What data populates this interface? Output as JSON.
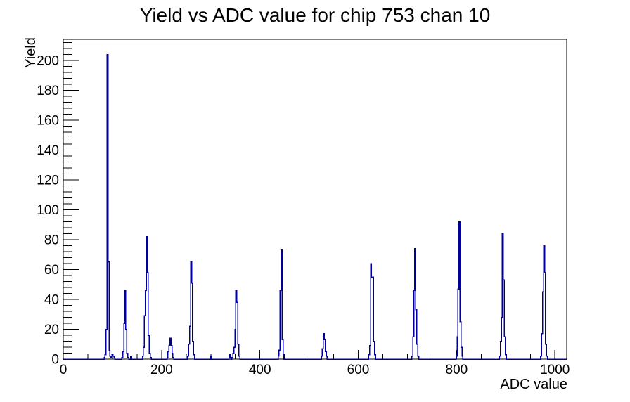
{
  "page": {
    "background": "#ffffff"
  },
  "chart_data": {
    "type": "histogram",
    "title": "Yield vs ADC value for chip 753 chan 10",
    "xlabel": "ADC value",
    "ylabel": "Yield",
    "xlim": [
      0,
      1024
    ],
    "ylim": [
      0,
      214.2
    ],
    "grid": false,
    "legend": false,
    "line_color": "#000099",
    "axis_color": "#000000",
    "x_tick_values": [
      0,
      200,
      400,
      600,
      800,
      1000
    ],
    "x_tick_labels": [
      "0",
      "200",
      "400",
      "600",
      "800",
      "1000"
    ],
    "x_minor_tick_step": 50,
    "x_major_tick_step": 200,
    "y_tick_values": [
      0,
      20,
      40,
      60,
      80,
      100,
      120,
      140,
      160,
      180,
      200
    ],
    "y_tick_labels": [
      "0",
      "20",
      "40",
      "60",
      "80",
      "100",
      "120",
      "140",
      "160",
      "180",
      "200"
    ],
    "y_minor_tick_step": 4,
    "y_major_tick_step": 20,
    "bin_width": 2,
    "bins": [
      [
        84,
        1
      ],
      [
        86,
        3
      ],
      [
        88,
        20
      ],
      [
        90,
        204
      ],
      [
        92,
        65
      ],
      [
        94,
        6
      ],
      [
        96,
        2
      ],
      [
        98,
        1
      ],
      [
        100,
        3
      ],
      [
        102,
        2
      ],
      [
        104,
        1
      ],
      [
        120,
        1
      ],
      [
        122,
        5
      ],
      [
        124,
        24
      ],
      [
        126,
        46
      ],
      [
        128,
        20
      ],
      [
        130,
        4
      ],
      [
        132,
        1
      ],
      [
        138,
        2
      ],
      [
        162,
        2
      ],
      [
        164,
        8
      ],
      [
        166,
        29
      ],
      [
        168,
        46
      ],
      [
        170,
        82
      ],
      [
        172,
        58
      ],
      [
        174,
        16
      ],
      [
        176,
        4
      ],
      [
        178,
        1
      ],
      [
        212,
        1
      ],
      [
        214,
        5
      ],
      [
        216,
        9
      ],
      [
        218,
        14
      ],
      [
        220,
        9
      ],
      [
        222,
        4
      ],
      [
        224,
        1
      ],
      [
        254,
        2
      ],
      [
        256,
        10
      ],
      [
        258,
        22
      ],
      [
        260,
        65
      ],
      [
        262,
        51
      ],
      [
        264,
        12
      ],
      [
        266,
        3
      ],
      [
        300,
        2
      ],
      [
        338,
        3
      ],
      [
        340,
        1
      ],
      [
        344,
        1
      ],
      [
        346,
        4
      ],
      [
        348,
        8
      ],
      [
        350,
        20
      ],
      [
        352,
        46
      ],
      [
        354,
        38
      ],
      [
        356,
        10
      ],
      [
        358,
        2
      ],
      [
        438,
        2
      ],
      [
        440,
        6
      ],
      [
        442,
        46
      ],
      [
        444,
        73
      ],
      [
        446,
        13
      ],
      [
        448,
        3
      ],
      [
        526,
        2
      ],
      [
        528,
        7
      ],
      [
        530,
        17
      ],
      [
        532,
        13
      ],
      [
        534,
        5
      ],
      [
        536,
        2
      ],
      [
        622,
        3
      ],
      [
        624,
        9
      ],
      [
        626,
        64
      ],
      [
        628,
        55
      ],
      [
        630,
        55
      ],
      [
        632,
        12
      ],
      [
        634,
        3
      ],
      [
        710,
        2
      ],
      [
        712,
        15
      ],
      [
        714,
        46
      ],
      [
        716,
        74
      ],
      [
        718,
        33
      ],
      [
        720,
        10
      ],
      [
        722,
        2
      ],
      [
        800,
        2
      ],
      [
        802,
        15
      ],
      [
        804,
        47
      ],
      [
        806,
        92
      ],
      [
        808,
        25
      ],
      [
        810,
        8
      ],
      [
        812,
        2
      ],
      [
        888,
        2
      ],
      [
        890,
        12
      ],
      [
        892,
        28
      ],
      [
        894,
        84
      ],
      [
        896,
        53
      ],
      [
        898,
        15
      ],
      [
        900,
        3
      ],
      [
        972,
        2
      ],
      [
        974,
        17
      ],
      [
        976,
        45
      ],
      [
        978,
        76
      ],
      [
        980,
        58
      ],
      [
        982,
        10
      ],
      [
        984,
        2
      ]
    ],
    "peak_summary": [
      {
        "adc": 90,
        "yield": 204
      },
      {
        "adc": 126,
        "yield": 46
      },
      {
        "adc": 170,
        "yield": 82
      },
      {
        "adc": 218,
        "yield": 14
      },
      {
        "adc": 260,
        "yield": 65
      },
      {
        "adc": 352,
        "yield": 46
      },
      {
        "adc": 444,
        "yield": 73
      },
      {
        "adc": 530,
        "yield": 17
      },
      {
        "adc": 626,
        "yield": 64
      },
      {
        "adc": 716,
        "yield": 74
      },
      {
        "adc": 806,
        "yield": 92
      },
      {
        "adc": 894,
        "yield": 84
      },
      {
        "adc": 978,
        "yield": 76
      }
    ]
  }
}
